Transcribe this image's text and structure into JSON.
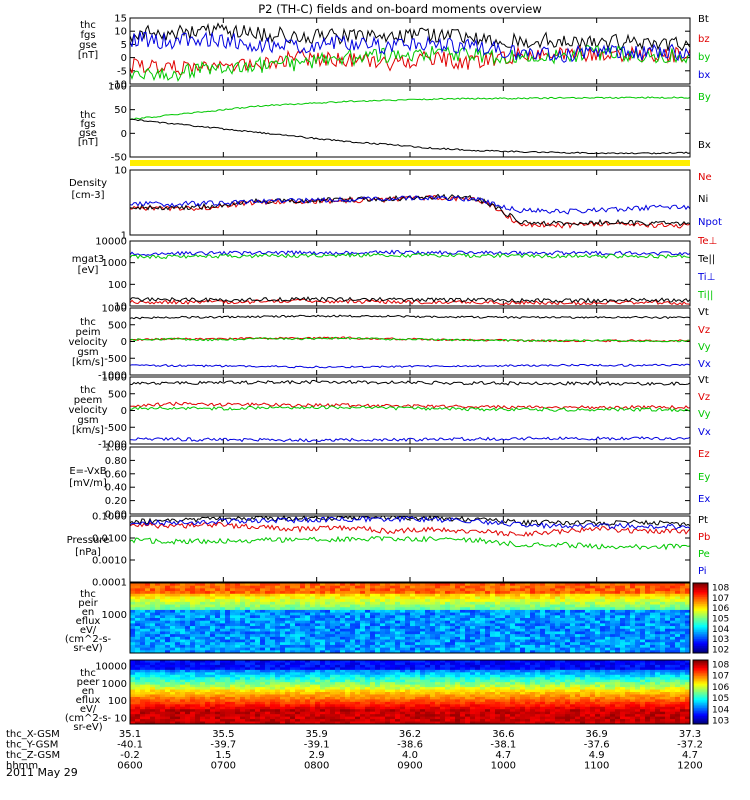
{
  "title": "P2 (TH-C) fields and on-board moments overview",
  "date_label": "2011 May 29",
  "colors": {
    "black": "#000000",
    "red": "#e00000",
    "green": "#00c800",
    "blue": "#0000e0",
    "yellow": "#ffee00"
  },
  "chart_data": [
    {
      "type": "line",
      "id": "fgs_gse",
      "ylabel": [
        "thc",
        "fgs",
        "gse",
        "[nT]"
      ],
      "ylim": [
        -10,
        15
      ],
      "yticks": [
        "15",
        "10",
        "5",
        "0",
        "-5",
        "-10"
      ],
      "series": [
        {
          "name": "Bt",
          "color": "black",
          "values": [
            9,
            9.5,
            10,
            9,
            8,
            8,
            7.5,
            9,
            7,
            6.5,
            6.5,
            6,
            5.5,
            5.5
          ]
        },
        {
          "name": "bz",
          "color": "red",
          "values": [
            -3,
            -4,
            -3,
            -2,
            0,
            -1,
            -2,
            0,
            -2,
            1,
            1,
            2,
            1,
            1
          ]
        },
        {
          "name": "by",
          "color": "green",
          "values": [
            -5,
            -6,
            -4,
            -3,
            -2,
            0,
            1,
            2,
            1,
            0,
            1,
            2,
            1,
            1
          ]
        },
        {
          "name": "bx",
          "color": "blue",
          "values": [
            7,
            6,
            7,
            5,
            4,
            6,
            4,
            5,
            4,
            2,
            1,
            2,
            2,
            2
          ]
        }
      ]
    },
    {
      "type": "line",
      "id": "fgs_gsm",
      "ylabel": [
        "thc",
        "fgs",
        "gse",
        "[nT]"
      ],
      "ylim": [
        -60,
        100
      ],
      "yticks": [
        "100",
        "50",
        "0",
        "-50"
      ],
      "series": [
        {
          "name": "By",
          "color": "green",
          "values": [
            25,
            35,
            45,
            55,
            60,
            65,
            68,
            70,
            72,
            72,
            73,
            73,
            74,
            74
          ]
        },
        {
          "name": "Bx",
          "color": "black",
          "values": [
            25,
            15,
            5,
            -5,
            -15,
            -25,
            -32,
            -40,
            -45,
            -48,
            -50,
            -52,
            -52,
            -50
          ]
        }
      ]
    },
    {
      "type": "line",
      "id": "density",
      "ylabel": [
        "Density",
        "[cm-3]"
      ],
      "ylim": [
        1,
        10
      ],
      "yticks": [
        "10",
        "1"
      ],
      "series": [
        {
          "name": "Ne",
          "color": "red",
          "values": [
            2.6,
            2.5,
            2.7,
            3.2,
            3.3,
            3.4,
            3.5,
            3.8,
            3.6,
            1.5,
            1.4,
            1.5,
            1.4,
            1.4
          ]
        },
        {
          "name": "Ni",
          "color": "black",
          "values": [
            2.7,
            2.6,
            2.8,
            3.3,
            3.4,
            3.5,
            3.6,
            3.9,
            3.7,
            1.6,
            1.5,
            1.6,
            1.5,
            1.5
          ]
        },
        {
          "name": "Npot",
          "color": "blue",
          "values": [
            3,
            3,
            3.1,
            3.3,
            3.4,
            3.5,
            3.6,
            3.7,
            3.6,
            2.4,
            2.3,
            2.4,
            2.6,
            2.7
          ]
        }
      ]
    },
    {
      "type": "line",
      "id": "temperature",
      "ylabel": [
        "mgat3",
        "[eV]"
      ],
      "ylim": [
        10,
        10000
      ],
      "yticks": [
        "10000",
        "1000",
        "100",
        "10"
      ],
      "series": [
        {
          "name": "Te⊥",
          "color": "red",
          "values": [
            15,
            15,
            15,
            16,
            17,
            16,
            16,
            15,
            15,
            14,
            14,
            14,
            15,
            14
          ]
        },
        {
          "name": "Te||",
          "color": "black",
          "values": [
            20,
            20,
            19,
            20,
            21,
            20,
            20,
            19,
            19,
            18,
            18,
            18,
            19,
            18
          ]
        },
        {
          "name": "Ti⊥",
          "color": "blue",
          "values": [
            2500,
            2600,
            2700,
            2800,
            2800,
            2900,
            3000,
            2900,
            2900,
            2800,
            2800,
            2700,
            2700,
            2700
          ]
        },
        {
          "name": "Ti||",
          "color": "green",
          "values": [
            1800,
            1900,
            2000,
            2100,
            2100,
            2200,
            2200,
            2200,
            2100,
            2100,
            2000,
            2000,
            2000,
            2000
          ]
        }
      ]
    },
    {
      "type": "line",
      "id": "peim_velocity",
      "ylabel": [
        "thc",
        "peim",
        "velocity",
        "gsm",
        "[km/s]"
      ],
      "ylim": [
        -1000,
        1000
      ],
      "yticks": [
        "1000",
        "500",
        "0",
        "-500",
        "-1000"
      ],
      "series": [
        {
          "name": "Vt",
          "color": "black",
          "values": [
            700,
            720,
            730,
            740,
            760,
            760,
            750,
            740,
            730,
            720,
            720,
            720,
            720,
            710
          ]
        },
        {
          "name": "Vz",
          "color": "red",
          "values": [
            50,
            80,
            70,
            100,
            90,
            110,
            80,
            60,
            40,
            30,
            20,
            20,
            30,
            20
          ]
        },
        {
          "name": "Vy",
          "color": "green",
          "values": [
            60,
            70,
            50,
            90,
            80,
            100,
            70,
            60,
            40,
            30,
            20,
            30,
            20,
            20
          ]
        },
        {
          "name": "Vx",
          "color": "blue",
          "values": [
            -700,
            -720,
            -730,
            -740,
            -760,
            -760,
            -750,
            -740,
            -730,
            -720,
            -710,
            -710,
            -710,
            -700
          ]
        }
      ]
    },
    {
      "type": "line",
      "id": "peem_velocity",
      "ylabel": [
        "thc",
        "peem",
        "velocity",
        "gsm",
        "[km/s]"
      ],
      "ylim": [
        -1000,
        1000
      ],
      "yticks": [
        "1000",
        "500",
        "0",
        "-500",
        "-1000"
      ],
      "series": [
        {
          "name": "Vt",
          "color": "black",
          "values": [
            800,
            820,
            830,
            840,
            850,
            850,
            840,
            830,
            820,
            810,
            810,
            810,
            800,
            800
          ]
        },
        {
          "name": "Vz",
          "color": "red",
          "values": [
            150,
            200,
            170,
            180,
            150,
            160,
            140,
            120,
            110,
            100,
            100,
            90,
            100,
            90
          ]
        },
        {
          "name": "Vy",
          "color": "green",
          "values": [
            60,
            80,
            50,
            90,
            80,
            100,
            70,
            60,
            40,
            30,
            30,
            30,
            30,
            20
          ]
        },
        {
          "name": "Vx",
          "color": "blue",
          "values": [
            -850,
            -860,
            -870,
            -880,
            -890,
            -880,
            -870,
            -860,
            -850,
            -840,
            -840,
            -830,
            -830,
            -820
          ]
        }
      ]
    },
    {
      "type": "line",
      "id": "efield",
      "ylabel": [
        "E=-VxB",
        "[mV/m]"
      ],
      "ylim": [
        0,
        1
      ],
      "yticks": [
        "1.00",
        "0.80",
        "0.60",
        "0.40",
        "0.20",
        "0.00"
      ],
      "series": [
        {
          "name": "Ez",
          "color": "red",
          "values": []
        },
        {
          "name": "Ey",
          "color": "green",
          "values": []
        },
        {
          "name": "Ex",
          "color": "blue",
          "values": []
        }
      ]
    },
    {
      "type": "line",
      "id": "pressure",
      "ylabel": [
        "Pressure",
        "[nPa]"
      ],
      "ylim": [
        0.0001,
        0.1
      ],
      "yticks": [
        "0.1000",
        "0.0100",
        "0.0010",
        "0.0001"
      ],
      "series": [
        {
          "name": "Pt",
          "color": "black",
          "values": [
            0.055,
            0.06,
            0.07,
            0.075,
            0.08,
            0.085,
            0.09,
            0.08,
            0.07,
            0.05,
            0.05,
            0.05,
            0.05,
            0.04
          ]
        },
        {
          "name": "Pb",
          "color": "red",
          "values": [
            0.04,
            0.035,
            0.04,
            0.03,
            0.025,
            0.03,
            0.02,
            0.025,
            0.02,
            0.015,
            0.02,
            0.025,
            0.02,
            0.02
          ]
        },
        {
          "name": "Pe",
          "color": "green",
          "values": [
            0.008,
            0.007,
            0.007,
            0.008,
            0.008,
            0.009,
            0.009,
            0.009,
            0.008,
            0.005,
            0.005,
            0.004,
            0.004,
            0.004
          ]
        },
        {
          "name": "Pi",
          "color": "blue",
          "values": [
            0.045,
            0.05,
            0.055,
            0.06,
            0.065,
            0.07,
            0.075,
            0.07,
            0.06,
            0.04,
            0.035,
            0.035,
            0.035,
            0.03
          ]
        }
      ]
    },
    {
      "type": "heatmap",
      "id": "peir_spectrogram",
      "ylabel": [
        "thc",
        "peir",
        "en",
        "eflux",
        "eV/",
        "(cm^2-s-",
        "sr-eV)"
      ],
      "yticks": [
        "1000"
      ],
      "colorbar_ticks": [
        "10^8",
        "10^7",
        "10^6",
        "10^5",
        "10^4",
        "10^3",
        "10^2"
      ]
    },
    {
      "type": "heatmap",
      "id": "peer_spectrogram",
      "ylabel": [
        "thc",
        "peer",
        "en",
        "eflux",
        "eV/",
        "(cm^2-s-",
        "sr-eV)"
      ],
      "yticks": [
        "10000",
        "1000",
        "100",
        "10"
      ],
      "colorbar_ticks": [
        "10^8",
        "10^7",
        "10^6",
        "10^5",
        "10^4",
        "10^3"
      ]
    }
  ],
  "x_axis": {
    "rows": [
      {
        "label": "thc_X-GSM",
        "values": [
          "35.1",
          "35.5",
          "35.9",
          "36.2",
          "36.6",
          "36.9",
          "37.3"
        ]
      },
      {
        "label": "thc_Y-GSM",
        "values": [
          "-40.1",
          "-39.7",
          "-39.1",
          "-38.6",
          "-38.1",
          "-37.6",
          "-37.2"
        ]
      },
      {
        "label": "thc_Z-GSM",
        "values": [
          "-0.2",
          "1.5",
          "2.9",
          "4.0",
          "4.7",
          "4.9",
          "4.7"
        ]
      },
      {
        "label": "hhmm",
        "values": [
          "0600",
          "0700",
          "0800",
          "0900",
          "1000",
          "1100",
          "1200"
        ]
      }
    ]
  }
}
